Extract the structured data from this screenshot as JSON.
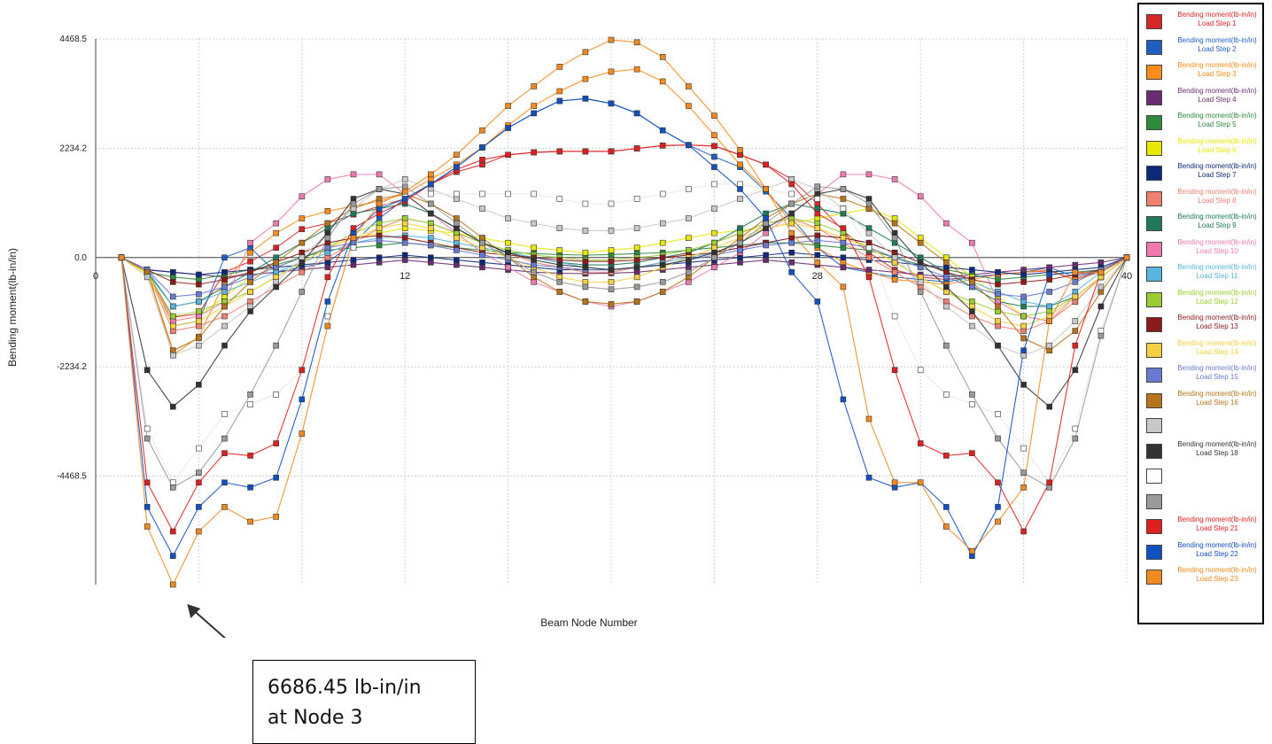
{
  "chart_data": {
    "type": "line",
    "title": "",
    "xlabel": "Beam Node Number",
    "ylabel": "Bending moment(lb-in/in)",
    "xlim": [
      0,
      40
    ],
    "ylim": [
      -6686.45,
      4468.5
    ],
    "x_ticks": [
      {
        "value": 0,
        "label": "0"
      },
      {
        "value": 12,
        "label": "12"
      },
      {
        "value": 28,
        "label": "28"
      },
      {
        "value": 40,
        "label": "40"
      }
    ],
    "y_ticks": [
      {
        "value": 4468.5,
        "label": "4468.5"
      },
      {
        "value": 2234.2,
        "label": "2234.2"
      },
      {
        "value": 0,
        "label": "0.0"
      },
      {
        "value": -2234.2,
        "label": "-2234.2"
      },
      {
        "value": -4468.5,
        "label": "-4468.5"
      }
    ],
    "grid": true,
    "legend_position": "right",
    "x": [
      1,
      2,
      3,
      4,
      5,
      6,
      7,
      8,
      9,
      10,
      11,
      12,
      13,
      14,
      15,
      16,
      17,
      18,
      19,
      20,
      21,
      22,
      23,
      24,
      25,
      26,
      27,
      28,
      29,
      30,
      31,
      32,
      33,
      34,
      35,
      36,
      37,
      38,
      39,
      40
    ],
    "series": [
      {
        "name": "Bending moment(lb-in/in) Load Step 1",
        "label": "Bending moment(lb-in/in) Load Step 1",
        "color": "#d62728",
        "values": [
          0,
          -300,
          -1220,
          -1150,
          -300,
          -80,
          200,
          580,
          700,
          880,
          1050,
          1200,
          1500,
          1750,
          1900,
          2100,
          2150,
          2170,
          2170,
          2170,
          2230,
          2290,
          2300,
          2280,
          2100,
          1900,
          1600,
          1100,
          550,
          100,
          -250,
          -400,
          -450,
          -400,
          -350,
          -300,
          -270,
          -450,
          -250,
          0
        ]
      },
      {
        "name": "Bending moment(lb-in/in) Load Step 2",
        "label": "Bending moment(lb-in/in) Load Step 2",
        "color": "#1f5fbf",
        "values": [
          0,
          -250,
          -1400,
          -1300,
          0,
          200,
          -300,
          -200,
          -100,
          300,
          800,
          1200,
          1500,
          1850,
          2250,
          2650,
          2950,
          3200,
          3250,
          3150,
          2950,
          2600,
          2300,
          2060,
          1850,
          1350,
          800,
          200,
          -200,
          -300,
          -400,
          -450,
          -500,
          -400,
          -350,
          -300,
          -200,
          -400,
          -250,
          0
        ]
      },
      {
        "name": "Bending moment(lb-in/in) Load Step 3",
        "label": "Bending moment(lb-in/in) Load Step 3",
        "color": "#ff8c1a",
        "values": [
          0,
          -250,
          -2000,
          -1620,
          -500,
          100,
          500,
          800,
          950,
          1050,
          1150,
          1300,
          1600,
          1900,
          2250,
          2700,
          3100,
          3400,
          3650,
          3800,
          3850,
          3600,
          3100,
          2500,
          1900,
          1400,
          700,
          200,
          -100,
          -300,
          -450,
          -500,
          -550,
          -450,
          -350,
          -300,
          -250,
          -450,
          -300,
          0
        ]
      },
      {
        "name": "Bending moment(lb-in/in) Load Step 4",
        "label": "Bending moment(lb-in/in) Load Step 4",
        "color": "#6a2c70",
        "values": [
          0,
          -250,
          -300,
          -350,
          -400,
          -350,
          -300,
          -250,
          -200,
          -150,
          -100,
          -50,
          -100,
          -150,
          -200,
          -250,
          -300,
          -320,
          -330,
          -320,
          -300,
          -250,
          -200,
          -150,
          -100,
          -50,
          -100,
          -150,
          -200,
          -250,
          -300,
          -350,
          -400,
          -350,
          -300,
          -250,
          -200,
          -150,
          -100,
          0
        ]
      },
      {
        "name": "Bending moment(lb-in/in) Load Step 5",
        "label": "Bending moment(lb-in/in) Load Step 5",
        "color": "#2e8b3e",
        "values": [
          0,
          -300,
          -400,
          -450,
          -350,
          -250,
          -150,
          0,
          150,
          200,
          250,
          300,
          250,
          200,
          150,
          100,
          80,
          60,
          50,
          60,
          80,
          100,
          150,
          200,
          250,
          300,
          300,
          250,
          200,
          150,
          0,
          -150,
          -250,
          -350,
          -450,
          -400,
          -350,
          -300,
          -250,
          0
        ]
      },
      {
        "name": "Bending moment(lb-in/in) Load Step 6",
        "label": "Bending moment(lb-in/in) Load Step 6",
        "color": "#e8e800",
        "values": [
          0,
          -350,
          -1300,
          -1200,
          -800,
          -400,
          -200,
          0,
          200,
          400,
          500,
          600,
          550,
          500,
          400,
          300,
          200,
          150,
          100,
          150,
          200,
          300,
          400,
          500,
          550,
          600,
          700,
          800,
          900,
          1000,
          800,
          400,
          0,
          -400,
          -800,
          -1200,
          -1300,
          -900,
          -400,
          0
        ]
      },
      {
        "name": "Bending moment(lb-in/in) Load Step 7",
        "label": "Bending moment(lb-in/in) Load Step 7",
        "color": "#0d2a7a",
        "values": [
          0,
          -250,
          -300,
          -350,
          -300,
          -250,
          -200,
          -150,
          -100,
          -50,
          0,
          50,
          0,
          -50,
          -100,
          -150,
          -200,
          -250,
          -250,
          -250,
          -200,
          -150,
          -100,
          -50,
          0,
          50,
          100,
          50,
          0,
          -50,
          -100,
          -150,
          -200,
          -250,
          -300,
          -350,
          -300,
          -250,
          -200,
          0
        ]
      },
      {
        "name": "Bending moment(lb-in/in) Load Step 8",
        "label": "Bending moment(lb-in/in) Load Step 8",
        "color": "#f08070",
        "values": [
          0,
          -300,
          -1500,
          -1400,
          -1200,
          -900,
          -600,
          -300,
          0,
          300,
          600,
          800,
          700,
          500,
          300,
          100,
          -100,
          -200,
          -300,
          -300,
          -200,
          -100,
          100,
          300,
          500,
          700,
          800,
          600,
          300,
          0,
          -300,
          -600,
          -900,
          -1200,
          -1400,
          -1500,
          -1300,
          -900,
          -400,
          0
        ]
      },
      {
        "name": "Bending moment(lb-in/in) Load Step 9",
        "label": "Bending moment(lb-in/in) Load Step 9",
        "color": "#1e7a5a",
        "values": [
          0,
          -300,
          -1000,
          -900,
          -600,
          -300,
          0,
          300,
          600,
          900,
          1000,
          1100,
          900,
          600,
          300,
          100,
          0,
          -100,
          -150,
          -150,
          -100,
          0,
          100,
          300,
          600,
          900,
          1100,
          1000,
          900,
          600,
          300,
          0,
          -300,
          -600,
          -900,
          -1000,
          -1000,
          -800,
          -400,
          0
        ]
      },
      {
        "name": "Bending moment(lb-in/in) Load Step 10",
        "label": "Bending moment(lb-in/in) Load Step 10",
        "color": "#f07ab0",
        "values": [
          0,
          -300,
          -1300,
          -1200,
          -900,
          300,
          700,
          1250,
          1600,
          1700,
          1700,
          1300,
          900,
          500,
          100,
          -200,
          -500,
          -700,
          -900,
          -1000,
          -900,
          -700,
          -500,
          -200,
          100,
          500,
          900,
          1300,
          1700,
          1700,
          1600,
          1250,
          700,
          300,
          -900,
          -1200,
          -1300,
          -800,
          -400,
          0
        ]
      },
      {
        "name": "Bending moment(lb-in/in) Load Step 11",
        "label": "Bending moment(lb-in/in) Load Step 11",
        "color": "#5ab4e0",
        "values": [
          0,
          -250,
          -1000,
          -900,
          -700,
          -500,
          -300,
          -100,
          100,
          300,
          400,
          450,
          400,
          300,
          200,
          100,
          0,
          -100,
          -200,
          -250,
          -200,
          -100,
          0,
          100,
          200,
          300,
          400,
          450,
          400,
          300,
          100,
          -100,
          -300,
          -500,
          -700,
          -900,
          -1000,
          -700,
          -300,
          0
        ]
      },
      {
        "name": "Bending moment(lb-in/in) Load Step 12",
        "label": "Bending moment(lb-in/in) Load Step 12",
        "color": "#9acd32",
        "values": [
          0,
          -300,
          -1200,
          -1100,
          -900,
          -700,
          -400,
          -100,
          200,
          500,
          700,
          800,
          700,
          500,
          300,
          150,
          50,
          0,
          -50,
          -50,
          0,
          50,
          150,
          300,
          500,
          700,
          800,
          700,
          500,
          200,
          -100,
          -400,
          -700,
          -900,
          -1100,
          -1200,
          -1100,
          -800,
          -400,
          0
        ]
      },
      {
        "name": "Bending moment(lb-in/in) Load Step 13",
        "label": "Bending moment(lb-in/in) Load Step 13",
        "color": "#8b1a1a",
        "values": [
          0,
          -250,
          -500,
          -550,
          -450,
          -300,
          -100,
          100,
          300,
          400,
          450,
          400,
          300,
          200,
          100,
          50,
          0,
          -50,
          -80,
          -80,
          -50,
          0,
          50,
          100,
          200,
          300,
          400,
          450,
          400,
          300,
          100,
          -100,
          -300,
          -450,
          -550,
          -500,
          -450,
          -350,
          -250,
          0
        ]
      },
      {
        "name": "Bending moment(lb-in/in) Load Step 14",
        "label": "Bending moment(lb-in/in) Load Step 14",
        "color": "#f5d040",
        "values": [
          0,
          -300,
          -1400,
          -1300,
          -1000,
          -700,
          -400,
          -100,
          200,
          400,
          600,
          700,
          600,
          400,
          200,
          0,
          -200,
          -400,
          -500,
          -500,
          -400,
          -200,
          0,
          200,
          400,
          600,
          700,
          600,
          400,
          200,
          -100,
          -400,
          -700,
          -1000,
          -1300,
          -1400,
          -1200,
          -800,
          -400,
          0
        ]
      },
      {
        "name": "Bending moment(lb-in/in) Load Step 15",
        "label": "Bending moment(lb-in/in) Load Step 15",
        "color": "#6a7ad0",
        "values": [
          0,
          -250,
          -800,
          -750,
          -600,
          -400,
          -200,
          0,
          200,
          300,
          350,
          300,
          250,
          150,
          50,
          -50,
          -150,
          -200,
          -250,
          -250,
          -200,
          -150,
          -50,
          50,
          150,
          250,
          300,
          350,
          300,
          200,
          0,
          -200,
          -400,
          -600,
          -750,
          -800,
          -700,
          -500,
          -250,
          0
        ]
      },
      {
        "name": "Bending moment(lb-in/in) Load Step 16",
        "label": "Bending moment(lb-in/in) Load Step 16",
        "color": "#b8741a",
        "values": [
          0,
          -300,
          -1900,
          -1650,
          -1000,
          -500,
          -100,
          300,
          700,
          1000,
          1200,
          1300,
          1100,
          800,
          400,
          0,
          -400,
          -700,
          -900,
          -950,
          -900,
          -700,
          -400,
          0,
          400,
          800,
          1100,
          1300,
          1200,
          1000,
          700,
          300,
          -100,
          -500,
          -1000,
          -1650,
          -1900,
          -1500,
          -700,
          0
        ]
      },
      {
        "name": "",
        "label": "",
        "color": "#c8c8c8",
        "values": [
          0,
          -400,
          -2000,
          -1800,
          -1400,
          -1000,
          -500,
          0,
          500,
          1000,
          1400,
          1600,
          1400,
          1200,
          1000,
          800,
          700,
          600,
          550,
          550,
          600,
          700,
          800,
          1000,
          1200,
          1400,
          1600,
          1400,
          1000,
          500,
          0,
          -500,
          -1000,
          -1400,
          -1800,
          -2000,
          -1800,
          -1300,
          -600,
          0
        ]
      },
      {
        "name": "Bending moment(lb-in/in) Load Step 18",
        "label": "Bending moment(lb-in/in) Load Step 18",
        "color": "#333333",
        "values": [
          0,
          -2300,
          -3050,
          -2600,
          -1800,
          -1100,
          -600,
          -100,
          500,
          1200,
          1400,
          1300,
          900,
          600,
          300,
          100,
          -50,
          -150,
          -200,
          -250,
          -200,
          -150,
          -50,
          100,
          300,
          600,
          900,
          1300,
          1400,
          1200,
          500,
          -100,
          -600,
          -1100,
          -1800,
          -2600,
          -3050,
          -2300,
          -1000,
          0
        ]
      },
      {
        "name": "",
        "label": "",
        "color": "#ffffff",
        "values": [
          0,
          -3500,
          -4600,
          -3900,
          -3200,
          -3000,
          -2800,
          -2300,
          -1200,
          200,
          1000,
          1300,
          1300,
          1300,
          1300,
          1300,
          1300,
          1200,
          1100,
          1100,
          1200,
          1300,
          1400,
          1500,
          1500,
          1400,
          1300,
          1200,
          1000,
          200,
          -1200,
          -2300,
          -2800,
          -3000,
          -3200,
          -3900,
          -4600,
          -3500,
          -1500,
          0
        ]
      },
      {
        "name": "",
        "label": "",
        "color": "#9a9a9a",
        "values": [
          0,
          -3700,
          -4700,
          -4400,
          -3700,
          -2800,
          -1800,
          -700,
          400,
          1100,
          1400,
          1450,
          1100,
          700,
          300,
          0,
          -300,
          -500,
          -600,
          -650,
          -600,
          -500,
          -300,
          0,
          300,
          700,
          1100,
          1450,
          1400,
          1100,
          400,
          -700,
          -1800,
          -2800,
          -3700,
          -4400,
          -4700,
          -3700,
          -1600,
          0
        ]
      },
      {
        "name": "Bending moment(lb-in/in) Load Step 21",
        "label": "Bending moment(lb-in/in) Load Step 21",
        "color": "#e02020",
        "values": [
          0,
          -4600,
          -5600,
          -4600,
          -4000,
          -4050,
          -3800,
          -2300,
          -400,
          600,
          900,
          1150,
          1500,
          1800,
          2000,
          2100,
          2150,
          2170,
          2170,
          2170,
          2230,
          2290,
          2300,
          2280,
          2100,
          1900,
          1500,
          900,
          600,
          -400,
          -2300,
          -3800,
          -4050,
          -4000,
          -4600,
          -5600,
          -4600,
          -1800,
          -300,
          0
        ]
      },
      {
        "name": "Bending moment(lb-in/in) Load Step 22",
        "label": "Bending moment(lb-in/in) Load Step 22",
        "color": "#1050c0",
        "values": [
          0,
          -5100,
          -6100,
          -5100,
          -4600,
          -4700,
          -4500,
          -2900,
          -900,
          500,
          1000,
          1200,
          1500,
          1850,
          2250,
          2650,
          2950,
          3200,
          3250,
          3150,
          2950,
          2600,
          2300,
          1850,
          1400,
          800,
          -300,
          -900,
          -2900,
          -4500,
          -4700,
          -4600,
          -5100,
          -6100,
          -5100,
          -1900,
          -350,
          -300,
          -300,
          0
        ]
      },
      {
        "name": "Bending moment(lb-in/in) Load Step 23",
        "label": "Bending moment(lb-in/in) Load Step 23",
        "color": "#f08a20",
        "values": [
          0,
          -5500,
          -6686.45,
          -5600,
          -5100,
          -5400,
          -5300,
          -3600,
          -1400,
          400,
          1100,
          1350,
          1700,
          2100,
          2600,
          3100,
          3500,
          3900,
          4200,
          4450,
          4400,
          4100,
          3500,
          2900,
          2200,
          1400,
          500,
          -100,
          -600,
          -3300,
          -4600,
          -4600,
          -5500,
          -6000,
          -5400,
          -4700,
          -1300,
          -300,
          -300,
          0
        ]
      }
    ]
  },
  "annotation": {
    "line1": "6686.45 lb-in/in",
    "line2": "at Node 3"
  }
}
